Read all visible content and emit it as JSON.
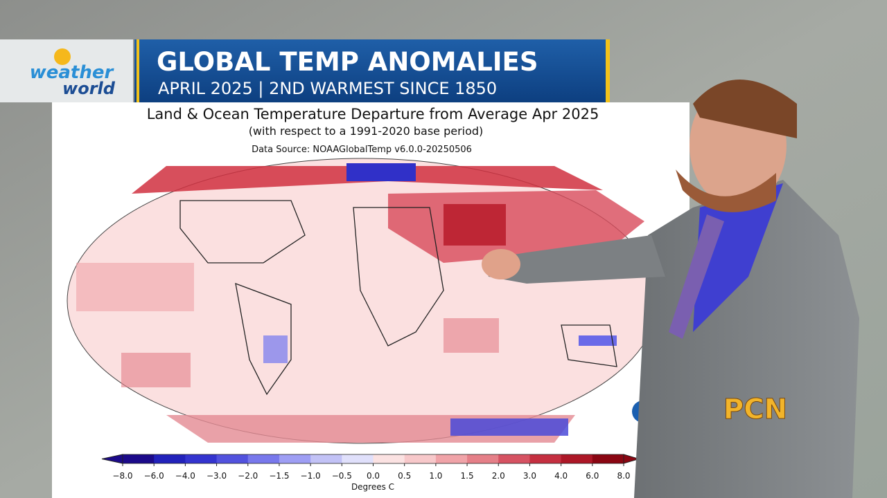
{
  "banner": {
    "title": "GLOBAL TEMP ANOMALIES",
    "subtitle": "APRIL 2025 | 2ND WARMEST SINCE 1850"
  },
  "logo": {
    "line1": "weather",
    "line2": "world"
  },
  "map": {
    "title": "Land & Ocean Temperature Departure from Average Apr 2025",
    "subtitle": "(with respect to a 1991-2020 base period)",
    "source": "Data Source: NOAAGlobalTemp v6.0.0-20250506",
    "colorbar": {
      "ticks": [
        {
          "value": -8,
          "label": "−8.0"
        },
        {
          "value": -6,
          "label": "−6.0"
        },
        {
          "value": -4,
          "label": "−4.0"
        },
        {
          "value": -3,
          "label": "−3.0"
        },
        {
          "value": -2,
          "label": "−2.0"
        },
        {
          "value": -1.5,
          "label": "−1.5"
        },
        {
          "value": -1,
          "label": "−1.0"
        },
        {
          "value": -0.5,
          "label": "−0.5"
        },
        {
          "value": 0,
          "label": "0.0"
        },
        {
          "value": 0.5,
          "label": "0.5"
        },
        {
          "value": 1,
          "label": "1.0"
        },
        {
          "value": 1.5,
          "label": "1.5"
        },
        {
          "value": 2,
          "label": "2.0"
        },
        {
          "value": 3,
          "label": "3.0"
        },
        {
          "value": 4,
          "label": "4.0"
        },
        {
          "value": 6,
          "label": "6.0"
        },
        {
          "value": 8,
          "label": "8.0"
        }
      ],
      "colors": [
        "#1c0a8a",
        "#2222bb",
        "#3434cf",
        "#5252de",
        "#7878ec",
        "#9e9ef4",
        "#c2c2f6",
        "#e0e0fb",
        "#fbe2e2",
        "#f7c8ca",
        "#f0a3a8",
        "#e57f88",
        "#d65262",
        "#c52f40",
        "#ad1727",
        "#8a0612"
      ],
      "label": "Degrees C"
    }
  },
  "channel_logo": "PCN"
}
